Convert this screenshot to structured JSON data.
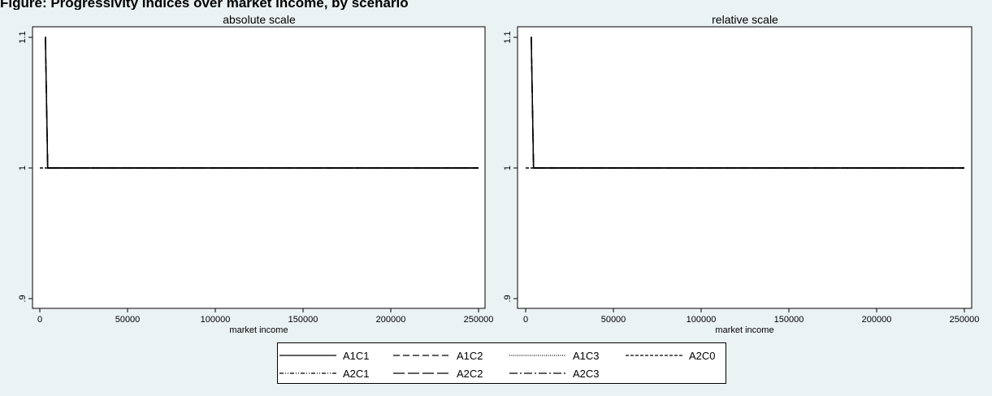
{
  "page_title": "Figure: Progressivity indices over market income, by scenario",
  "chart_data": [
    {
      "type": "line",
      "title": "absolute scale",
      "xlabel": "",
      "ylabel": "",
      "xlim": [
        0,
        250000
      ],
      "ylim": [
        0.9,
        1.1
      ],
      "x_ticks": [
        0,
        50000,
        100000,
        150000,
        200000,
        250000
      ],
      "x_tick_labels": [
        "0",
        "50000",
        "100000",
        "150000",
        "200000",
        "250000"
      ],
      "y_ticks": [
        0.9,
        1,
        1.1
      ],
      "y_tick_labels": [
        ".9",
        "1",
        "1.1"
      ],
      "series": [
        {
          "name": "A1C1",
          "x": [
            3000,
            3200,
            4500,
            250000
          ],
          "y": [
            1.1,
            1.1,
            1.0,
            1.0
          ]
        },
        {
          "name": "A1C2",
          "x": [
            3000,
            3200,
            4500,
            250000
          ],
          "y": [
            1.1,
            1.1,
            1.0,
            1.0
          ]
        },
        {
          "name": "A1C3",
          "x": [
            3000,
            3200,
            4500,
            250000
          ],
          "y": [
            1.1,
            1.1,
            1.0,
            1.0
          ]
        },
        {
          "name": "A2C0",
          "x": [
            0,
            250000
          ],
          "y": [
            1.0,
            1.0
          ]
        },
        {
          "name": "A2C1",
          "x": [
            3000,
            3200,
            4500,
            250000
          ],
          "y": [
            1.1,
            1.1,
            1.0,
            1.0
          ]
        },
        {
          "name": "A2C2",
          "x": [
            3000,
            3200,
            4500,
            250000
          ],
          "y": [
            1.1,
            1.1,
            1.0,
            1.0
          ]
        },
        {
          "name": "A2C3",
          "x": [
            3000,
            3200,
            4500,
            250000
          ],
          "y": [
            1.1,
            1.1,
            1.0,
            1.0
          ]
        }
      ]
    },
    {
      "type": "line",
      "title": "relative scale",
      "xlabel": "market income",
      "ylabel": "",
      "xlim": [
        0,
        250000
      ],
      "ylim": [
        0.9,
        1.1
      ],
      "x_ticks": [
        0,
        50000,
        100000,
        150000,
        200000,
        250000
      ],
      "x_tick_labels": [
        "0",
        "50000",
        "100000",
        "150000",
        "200000",
        "250000"
      ],
      "y_ticks": [
        0.9,
        1,
        1.1
      ],
      "y_tick_labels": [
        ".9",
        "1",
        "1.1"
      ],
      "series": [
        {
          "name": "A1C1",
          "x": [
            3000,
            3200,
            4500,
            250000
          ],
          "y": [
            1.1,
            1.1,
            1.0,
            1.0
          ]
        },
        {
          "name": "A1C2",
          "x": [
            3000,
            3200,
            4500,
            250000
          ],
          "y": [
            1.1,
            1.1,
            1.0,
            1.0
          ]
        },
        {
          "name": "A1C3",
          "x": [
            3000,
            3200,
            4500,
            250000
          ],
          "y": [
            1.1,
            1.1,
            1.0,
            1.0
          ]
        },
        {
          "name": "A2C0",
          "x": [
            0,
            250000
          ],
          "y": [
            1.0,
            1.0
          ]
        },
        {
          "name": "A2C1",
          "x": [
            3000,
            3200,
            4500,
            250000
          ],
          "y": [
            1.1,
            1.1,
            1.0,
            1.0
          ]
        },
        {
          "name": "A2C2",
          "x": [
            3000,
            3200,
            4500,
            250000
          ],
          "y": [
            1.1,
            1.1,
            1.0,
            1.0
          ]
        },
        {
          "name": "A2C3",
          "x": [
            3000,
            3200,
            4500,
            250000
          ],
          "y": [
            1.1,
            1.1,
            1.0,
            1.0
          ]
        }
      ]
    }
  ],
  "legend": {
    "items": [
      {
        "name": "A1C1",
        "dash": ""
      },
      {
        "name": "A1C2",
        "dash": "8,4"
      },
      {
        "name": "A1C3",
        "dash": "1,1.5"
      },
      {
        "name": "A2C0",
        "dash": "4,2"
      },
      {
        "name": "A2C1",
        "dash": "5,2,1,2,1,2"
      },
      {
        "name": "A2C2",
        "dash": "14,4"
      },
      {
        "name": "A2C3",
        "dash": "10,3,2,3"
      }
    ]
  },
  "colors": {
    "background": "#eaf2f3",
    "plot_bg": "#ffffff",
    "line": "#000000"
  }
}
